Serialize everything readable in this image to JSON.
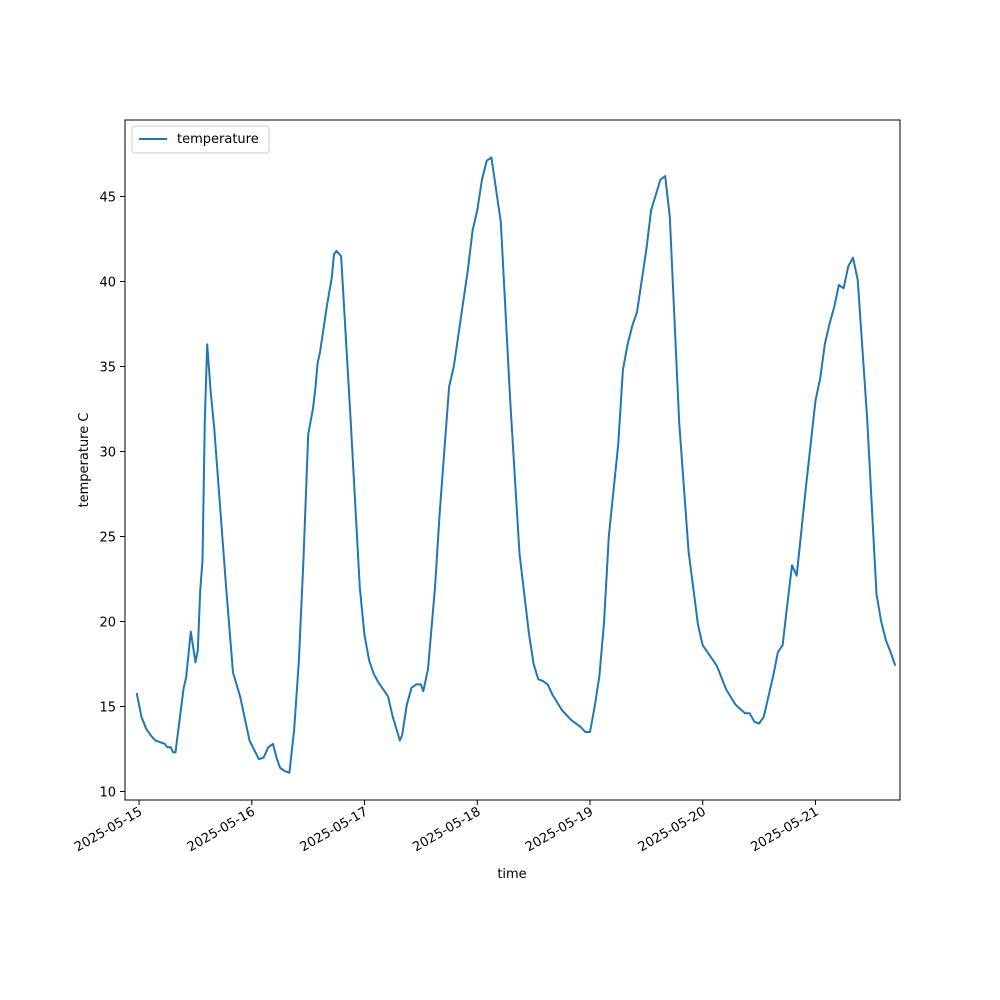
{
  "chart_data": {
    "type": "line",
    "title": "",
    "xlabel": "time",
    "ylabel": "temperature C",
    "ylim": [
      9.5,
      49.5
    ],
    "xlim": [
      "2025-05-14T21:00",
      "2025-05-21T18:00"
    ],
    "x_ticks": [
      "2025-05-15",
      "2025-05-16",
      "2025-05-17",
      "2025-05-18",
      "2025-05-19",
      "2025-05-20",
      "2025-05-21"
    ],
    "y_ticks": [
      10,
      15,
      20,
      25,
      30,
      35,
      40,
      45
    ],
    "grid": false,
    "legend": {
      "position": "top-left"
    },
    "series": [
      {
        "name": "temperature",
        "color": "#1f77b4",
        "points": [
          [
            "2025-05-14T23:30",
            15.8
          ],
          [
            "2025-05-15T00:30",
            14.4
          ],
          [
            "2025-05-15T01:30",
            13.7
          ],
          [
            "2025-05-15T02:30",
            13.3
          ],
          [
            "2025-05-15T03:30",
            13.0
          ],
          [
            "2025-05-15T04:30",
            12.9
          ],
          [
            "2025-05-15T05:30",
            12.8
          ],
          [
            "2025-05-15T06:00",
            12.6
          ],
          [
            "2025-05-15T06:45",
            12.6
          ],
          [
            "2025-05-15T07:15",
            12.3
          ],
          [
            "2025-05-15T07:45",
            12.3
          ],
          [
            "2025-05-15T08:15",
            13.4
          ],
          [
            "2025-05-15T09:30",
            16.1
          ],
          [
            "2025-05-15T10:00",
            16.7
          ],
          [
            "2025-05-15T11:00",
            19.4
          ],
          [
            "2025-05-15T12:00",
            17.6
          ],
          [
            "2025-05-15T12:30",
            18.3
          ],
          [
            "2025-05-15T13:00",
            21.8
          ],
          [
            "2025-05-15T13:30",
            23.6
          ],
          [
            "2025-05-15T14:00",
            31.8
          ],
          [
            "2025-05-15T14:30",
            36.3
          ],
          [
            "2025-05-15T15:15",
            33.5
          ],
          [
            "2025-05-15T16:00",
            31.4
          ],
          [
            "2025-05-15T18:30",
            22.1
          ],
          [
            "2025-05-15T20:00",
            17.0
          ],
          [
            "2025-05-15T21:30",
            15.6
          ],
          [
            "2025-05-15T23:30",
            13.0
          ],
          [
            "2025-05-16T01:30",
            11.9
          ],
          [
            "2025-05-16T02:30",
            12.0
          ],
          [
            "2025-05-16T03:30",
            12.6
          ],
          [
            "2025-05-16T04:30",
            12.8
          ],
          [
            "2025-05-16T05:15",
            12.0
          ],
          [
            "2025-05-16T06:00",
            11.4
          ],
          [
            "2025-05-16T07:00",
            11.2
          ],
          [
            "2025-05-16T08:00",
            11.1
          ],
          [
            "2025-05-16T09:00",
            13.6
          ],
          [
            "2025-05-16T10:00",
            17.6
          ],
          [
            "2025-05-16T11:00",
            23.7
          ],
          [
            "2025-05-16T12:00",
            31.0
          ],
          [
            "2025-05-16T13:00",
            32.5
          ],
          [
            "2025-05-16T13:30",
            33.6
          ],
          [
            "2025-05-16T14:00",
            35.2
          ],
          [
            "2025-05-16T14:30",
            35.8
          ],
          [
            "2025-05-16T16:00",
            38.6
          ],
          [
            "2025-05-16T17:00",
            40.2
          ],
          [
            "2025-05-16T17:30",
            41.6
          ],
          [
            "2025-05-16T18:00",
            41.8
          ],
          [
            "2025-05-16T19:00",
            41.5
          ],
          [
            "2025-05-16T21:00",
            32.0
          ],
          [
            "2025-05-16T23:00",
            22.0
          ],
          [
            "2025-05-17T00:00",
            19.2
          ],
          [
            "2025-05-17T01:00",
            17.7
          ],
          [
            "2025-05-17T02:00",
            16.9
          ],
          [
            "2025-05-17T03:00",
            16.4
          ],
          [
            "2025-05-17T05:00",
            15.6
          ],
          [
            "2025-05-17T06:00",
            14.4
          ],
          [
            "2025-05-17T07:00",
            13.5
          ],
          [
            "2025-05-17T07:30",
            13.0
          ],
          [
            "2025-05-17T08:00",
            13.3
          ],
          [
            "2025-05-17T09:00",
            15.1
          ],
          [
            "2025-05-17T10:00",
            16.1
          ],
          [
            "2025-05-17T11:00",
            16.3
          ],
          [
            "2025-05-17T12:00",
            16.3
          ],
          [
            "2025-05-17T12:30",
            15.9
          ],
          [
            "2025-05-17T13:30",
            17.2
          ],
          [
            "2025-05-17T15:00",
            22.0
          ],
          [
            "2025-05-17T16:00",
            26.4
          ],
          [
            "2025-05-17T18:00",
            33.8
          ],
          [
            "2025-05-17T19:00",
            35.0
          ],
          [
            "2025-05-17T20:00",
            36.9
          ],
          [
            "2025-05-17T22:00",
            40.7
          ],
          [
            "2025-05-17T23:00",
            43.0
          ],
          [
            "2025-05-18T00:00",
            44.2
          ],
          [
            "2025-05-18T01:00",
            46.0
          ],
          [
            "2025-05-18T02:00",
            47.1
          ],
          [
            "2025-05-18T03:00",
            47.3
          ],
          [
            "2025-05-18T05:00",
            43.5
          ],
          [
            "2025-05-18T07:00",
            33.0
          ],
          [
            "2025-05-18T09:00",
            24.0
          ],
          [
            "2025-05-18T11:00",
            19.3
          ],
          [
            "2025-05-18T12:00",
            17.5
          ],
          [
            "2025-05-18T13:00",
            16.6
          ],
          [
            "2025-05-18T14:00",
            16.5
          ],
          [
            "2025-05-18T15:00",
            16.3
          ],
          [
            "2025-05-18T16:00",
            15.7
          ],
          [
            "2025-05-18T18:00",
            14.8
          ],
          [
            "2025-05-18T20:00",
            14.2
          ],
          [
            "2025-05-18T22:00",
            13.8
          ],
          [
            "2025-05-18T23:00",
            13.5
          ],
          [
            "2025-05-19T00:00",
            13.5
          ],
          [
            "2025-05-19T01:00",
            15.0
          ],
          [
            "2025-05-19T02:00",
            16.8
          ],
          [
            "2025-05-19T03:00",
            20.0
          ],
          [
            "2025-05-19T04:00",
            25.0
          ],
          [
            "2025-05-19T06:00",
            30.4
          ],
          [
            "2025-05-19T07:00",
            34.8
          ],
          [
            "2025-05-19T08:00",
            36.3
          ],
          [
            "2025-05-19T09:00",
            37.4
          ],
          [
            "2025-05-19T10:00",
            38.2
          ],
          [
            "2025-05-19T12:00",
            41.9
          ],
          [
            "2025-05-19T13:00",
            44.2
          ],
          [
            "2025-05-19T15:00",
            46.0
          ],
          [
            "2025-05-19T16:00",
            46.2
          ],
          [
            "2025-05-19T17:00",
            43.8
          ],
          [
            "2025-05-19T19:00",
            31.7
          ],
          [
            "2025-05-19T21:00",
            24.1
          ],
          [
            "2025-05-19T23:00",
            19.8
          ],
          [
            "2025-05-20T00:00",
            18.6
          ],
          [
            "2025-05-20T01:00",
            18.2
          ],
          [
            "2025-05-20T03:00",
            17.4
          ],
          [
            "2025-05-20T05:00",
            16.0
          ],
          [
            "2025-05-20T07:00",
            15.1
          ],
          [
            "2025-05-20T09:00",
            14.6
          ],
          [
            "2025-05-20T10:00",
            14.6
          ],
          [
            "2025-05-20T11:00",
            14.1
          ],
          [
            "2025-05-20T12:00",
            14.0
          ],
          [
            "2025-05-20T13:00",
            14.4
          ],
          [
            "2025-05-20T15:00",
            16.8
          ],
          [
            "2025-05-20T16:00",
            18.2
          ],
          [
            "2025-05-20T17:00",
            18.6
          ],
          [
            "2025-05-20T18:00",
            21.0
          ],
          [
            "2025-05-20T19:00",
            23.3
          ],
          [
            "2025-05-20T20:00",
            22.7
          ],
          [
            "2025-05-20T22:00",
            28.0
          ],
          [
            "2025-05-21T00:00",
            33.0
          ],
          [
            "2025-05-21T01:00",
            34.3
          ],
          [
            "2025-05-21T02:00",
            36.3
          ],
          [
            "2025-05-21T03:00",
            37.5
          ],
          [
            "2025-05-21T04:00",
            38.5
          ],
          [
            "2025-05-21T05:00",
            39.8
          ],
          [
            "2025-05-21T06:00",
            39.6
          ],
          [
            "2025-05-21T07:00",
            40.9
          ],
          [
            "2025-05-21T08:00",
            41.4
          ],
          [
            "2025-05-21T09:00",
            40.1
          ],
          [
            "2025-05-21T11:00",
            32.0
          ],
          [
            "2025-05-21T13:00",
            21.6
          ],
          [
            "2025-05-21T14:00",
            20.0
          ],
          [
            "2025-05-21T15:00",
            18.9
          ],
          [
            "2025-05-21T16:00",
            18.2
          ],
          [
            "2025-05-21T17:00",
            17.4
          ]
        ]
      }
    ]
  }
}
